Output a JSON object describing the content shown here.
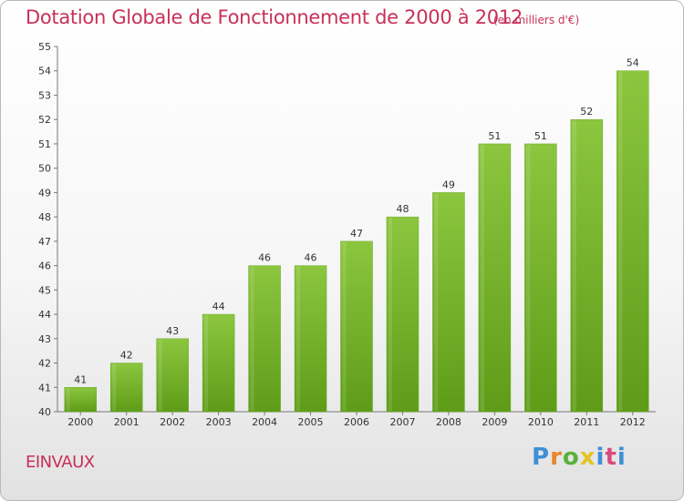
{
  "chart_data": {
    "type": "bar",
    "title": "Dotation Globale de Fonctionnement de 2000 à 2012",
    "subtitle": "(en milliers d'€)",
    "categories": [
      "2000",
      "2001",
      "2002",
      "2003",
      "2004",
      "2005",
      "2006",
      "2007",
      "2008",
      "2009",
      "2010",
      "2011",
      "2012"
    ],
    "values": [
      41,
      42,
      43,
      44,
      46,
      46,
      47,
      48,
      49,
      51,
      51,
      52,
      54
    ],
    "ylim": [
      40,
      55
    ],
    "yticks": [
      40,
      41,
      42,
      43,
      44,
      45,
      46,
      47,
      48,
      49,
      50,
      51,
      52,
      53,
      54,
      55
    ],
    "grid": false,
    "bar_color": "#7fba32",
    "bar_color_dark": "#5d9a18",
    "data_labels": true
  },
  "commune": "EINVAUX",
  "logo": {
    "letters": [
      "P",
      "r",
      "o",
      "x",
      "i",
      "t",
      "i"
    ]
  }
}
